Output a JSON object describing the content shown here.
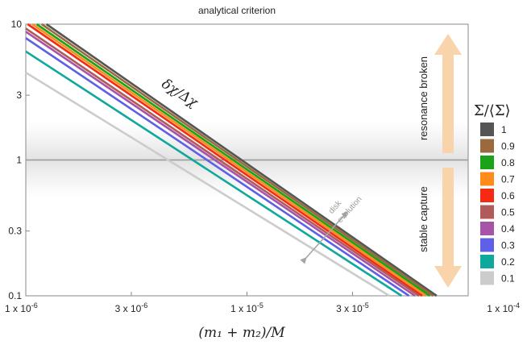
{
  "chart_data": {
    "type": "line",
    "title": "analytical criterion",
    "xlabel": "(m₁ + m₂)/M",
    "ylabel": "",
    "xscale": "log",
    "yscale": "log",
    "xlim": [
      1e-06,
      0.0001
    ],
    "ylim": [
      0.1,
      10
    ],
    "x_ticks": [
      {
        "value": 1e-06,
        "mantissa": "1 x 10",
        "exp": "-6"
      },
      {
        "value": 3e-06,
        "mantissa": "3 x 10",
        "exp": "-6"
      },
      {
        "value": 1e-05,
        "mantissa": "1 x 10",
        "exp": "-5"
      },
      {
        "value": 3e-05,
        "mantissa": "3 x 10",
        "exp": "-5"
      },
      {
        "value": 0.0001,
        "mantissa": "1 x 10",
        "exp": "-4"
      }
    ],
    "y_ticks": [
      {
        "value": 10,
        "label": "10"
      },
      {
        "value": 3,
        "label": "3"
      },
      {
        "value": 1,
        "label": "1"
      },
      {
        "value": 0.3,
        "label": "0.3"
      },
      {
        "value": 0.1,
        "label": "0.1"
      }
    ],
    "grid": false,
    "reference_line": {
      "y": 1
    },
    "legend": {
      "title": "Σ/⟨Σ⟩",
      "placement": "right"
    },
    "series": [
      {
        "name": "1",
        "color": "#555555",
        "x": [
          1.24e-06,
          7.2e-05
        ],
        "y": [
          10,
          0.1
        ]
      },
      {
        "name": "0.9",
        "color": "#9a6a3c",
        "x": [
          1.18e-06,
          6.95e-05
        ],
        "y": [
          10,
          0.1
        ]
      },
      {
        "name": "0.8",
        "color": "#1aa31a",
        "x": [
          1.12e-06,
          6.7e-05
        ],
        "y": [
          10,
          0.1
        ]
      },
      {
        "name": "0.7",
        "color": "#ff8c1a",
        "x": [
          1.07e-06,
          6.45e-05
        ],
        "y": [
          10,
          0.1
        ]
      },
      {
        "name": "0.6",
        "color": "#f42b12",
        "x": [
          1.02e-06,
          6.2e-05
        ],
        "y": [
          10,
          0.1
        ]
      },
      {
        "name": "0.5",
        "color": "#b05a5a",
        "x": [
          1e-06,
          6e-05
        ],
        "y": [
          9.3,
          0.1
        ]
      },
      {
        "name": "0.4",
        "color": "#a653a8",
        "x": [
          1e-06,
          5.75e-05
        ],
        "y": [
          8.8,
          0.1
        ]
      },
      {
        "name": "0.3",
        "color": "#5f5fe8",
        "x": [
          1e-06,
          5.4e-05
        ],
        "y": [
          7.9,
          0.1
        ]
      },
      {
        "name": "0.2",
        "color": "#0fa89c",
        "x": [
          1e-06,
          5e-05
        ],
        "y": [
          6.3,
          0.1
        ]
      },
      {
        "name": "0.1",
        "color": "#cccccc",
        "x": [
          1e-06,
          4.4e-05
        ],
        "y": [
          4.4,
          0.1
        ]
      }
    ],
    "annotations": {
      "ratio_label": "δχ/Δχ",
      "disk_label_1": "disk",
      "disk_label_2": "evolution",
      "upper_arrow_label": "resonance broken",
      "lower_arrow_label": "stable capture"
    }
  }
}
